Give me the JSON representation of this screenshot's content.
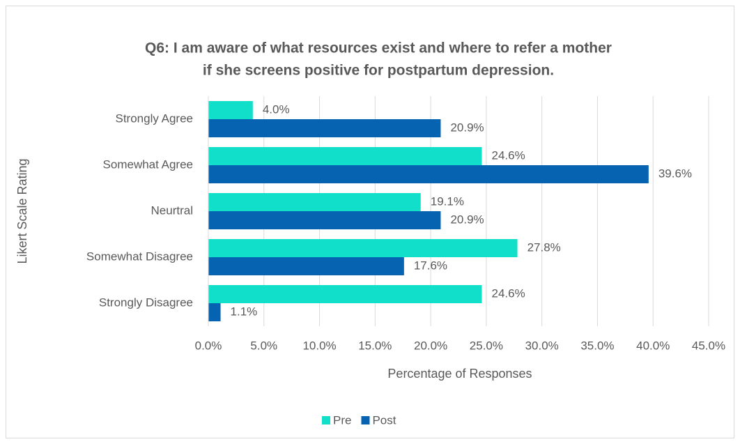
{
  "chart_data": {
    "type": "hbar",
    "title": [
      "Q6: I am aware of what resources exist and where to refer a mother",
      "if she screens positive for postpartum depression."
    ],
    "x_label": "Percentage of Responses",
    "y_label": "Likert Scale Rating",
    "categories": [
      "Strongly Agree",
      "Somewhat Agree",
      "Neurtral",
      "Somewhat Disagree",
      "Strongly Disagree"
    ],
    "series": [
      {
        "name": "Pre",
        "color": "#12dfca",
        "values": [
          4.0,
          24.6,
          19.1,
          27.8,
          24.6
        ],
        "value_labels": [
          "4.0%",
          "24.6%",
          "19.1%",
          "27.8%",
          "24.6%"
        ]
      },
      {
        "name": "Post",
        "color": "#0563b2",
        "values": [
          20.9,
          39.6,
          20.9,
          17.6,
          1.1
        ],
        "value_labels": [
          "20.9%",
          "39.6%",
          "20.9%",
          "17.6%",
          "1.1%"
        ]
      }
    ],
    "xlim": [
      0,
      45
    ],
    "xticks": [
      {
        "value": 0,
        "label": "0.0%"
      },
      {
        "value": 5,
        "label": "5.0%"
      },
      {
        "value": 10,
        "label": "10.0%"
      },
      {
        "value": 15,
        "label": "15.0%"
      },
      {
        "value": 20,
        "label": "20.0%"
      },
      {
        "value": 25,
        "label": "25.0%"
      },
      {
        "value": 30,
        "label": "30.0%"
      },
      {
        "value": 35,
        "label": "35.0%"
      },
      {
        "value": 40,
        "label": "40.0%"
      },
      {
        "value": 45,
        "label": "45.0%"
      }
    ],
    "grid": true,
    "legend": "bottom"
  }
}
